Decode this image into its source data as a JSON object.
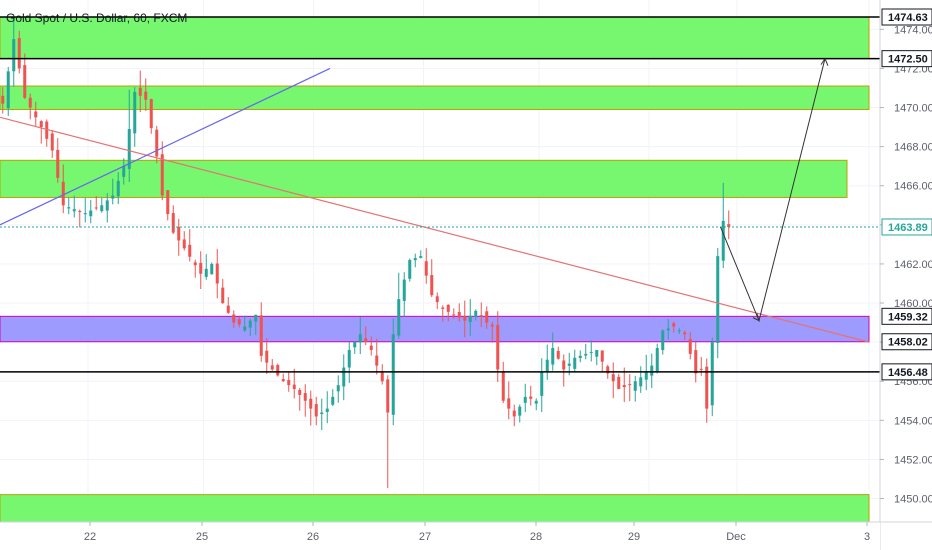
{
  "header": {
    "title": "Gold Spot / U.S. Dollar, 60, FXCM"
  },
  "colors": {
    "up": "#26a69a",
    "down": "#ef5350",
    "zone_green": "#76f76f",
    "zone_green_border": "#b5a400",
    "zone_purple": "#9e9bff",
    "zone_purple_border": "#d500b8",
    "trend_red": "#e57373",
    "trend_blue": "#6666ee",
    "last_price_line": "#26a69a",
    "level_line": "#000000"
  },
  "chart_data": {
    "type": "candlestick",
    "title": "Gold Spot / U.S. Dollar, 60, FXCM",
    "xlabel": "",
    "ylabel": "",
    "ylim": [
      1448.8,
      1475.5
    ],
    "x_ticks": [
      "22",
      "25",
      "26",
      "27",
      "28",
      "29",
      "Dec",
      "3"
    ],
    "y_ticks": [
      "1450.00",
      "1452.00",
      "1454.00",
      "1456.00",
      "1458.00",
      "1460.00",
      "1462.00",
      "1464.00",
      "1466.00",
      "1468.00",
      "1470.00",
      "1472.00",
      "1474.00"
    ],
    "price_tags": [
      {
        "label": "1474.63",
        "value": 1474.63,
        "style": "dark"
      },
      {
        "label": "1472.50",
        "value": 1472.5,
        "style": "dark"
      },
      {
        "label": "1463.89",
        "value": 1463.89,
        "style": "last"
      },
      {
        "label": "1459.32",
        "value": 1459.32,
        "style": "dark"
      },
      {
        "label": "1458.02",
        "value": 1458.02,
        "style": "dark"
      },
      {
        "label": "1456.48",
        "value": 1456.48,
        "style": "dark"
      }
    ],
    "zones": [
      {
        "color": "green",
        "from_x": 0,
        "to_x": 158,
        "y_low": 1472.5,
        "y_high": 1474.63
      },
      {
        "color": "green",
        "from_x": 0,
        "to_x": 158,
        "y_low": 1469.9,
        "y_high": 1471.1
      },
      {
        "color": "green",
        "from_x": 0,
        "to_x": 154,
        "y_low": 1465.4,
        "y_high": 1467.3
      },
      {
        "color": "purple",
        "from_x": 0,
        "to_x": 158,
        "y_low": 1458.02,
        "y_high": 1459.32
      },
      {
        "color": "green",
        "from_x": 0,
        "to_x": 158,
        "y_low": 1448.8,
        "y_high": 1450.2
      }
    ],
    "levels": [
      1474.63,
      1472.5,
      1456.48
    ],
    "trendlines": [
      {
        "color": "red",
        "x1": 0,
        "y1": 1469.5,
        "x2": 158,
        "y2": 1458.0
      },
      {
        "color": "blue",
        "x1": 0,
        "y1": 1464.0,
        "x2": 60,
        "y2": 1472.0
      }
    ],
    "projection": {
      "points": [
        [
          131,
          1463.89
        ],
        [
          138,
          1459.1
        ],
        [
          150,
          1472.5
        ]
      ]
    },
    "candles_hint": "hourly OHLC from ~Nov 21 to Nov 29; last close 1463.89"
  }
}
